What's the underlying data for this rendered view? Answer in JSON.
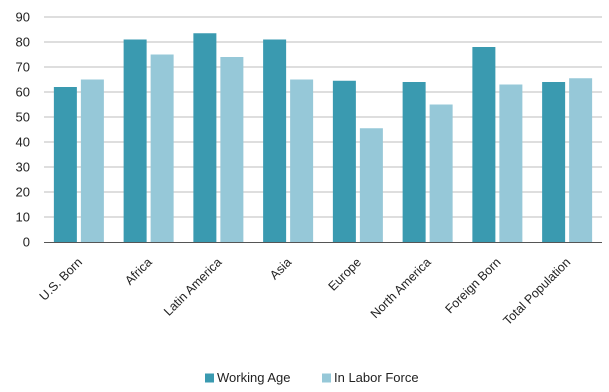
{
  "chart_data": {
    "type": "bar",
    "title": "",
    "xlabel": "",
    "ylabel": "",
    "ylim": [
      0,
      90
    ],
    "yticks": [
      0,
      10,
      20,
      30,
      40,
      50,
      60,
      70,
      80,
      90
    ],
    "grid": true,
    "legend_position": "bottom",
    "categories": [
      "U.S. Born",
      "Africa",
      "Latin America",
      "Asia",
      "Europe",
      "North America",
      "Foreign Born",
      "Total Population"
    ],
    "series": [
      {
        "name": "Working Age",
        "color": "#3a9ab0",
        "values": [
          62,
          81,
          83.5,
          81,
          64.5,
          64,
          78,
          64
        ]
      },
      {
        "name": "In Labor Force",
        "color": "#96c8d8",
        "values": [
          65,
          75,
          74,
          65,
          45.5,
          55,
          63,
          65.5
        ]
      }
    ]
  }
}
